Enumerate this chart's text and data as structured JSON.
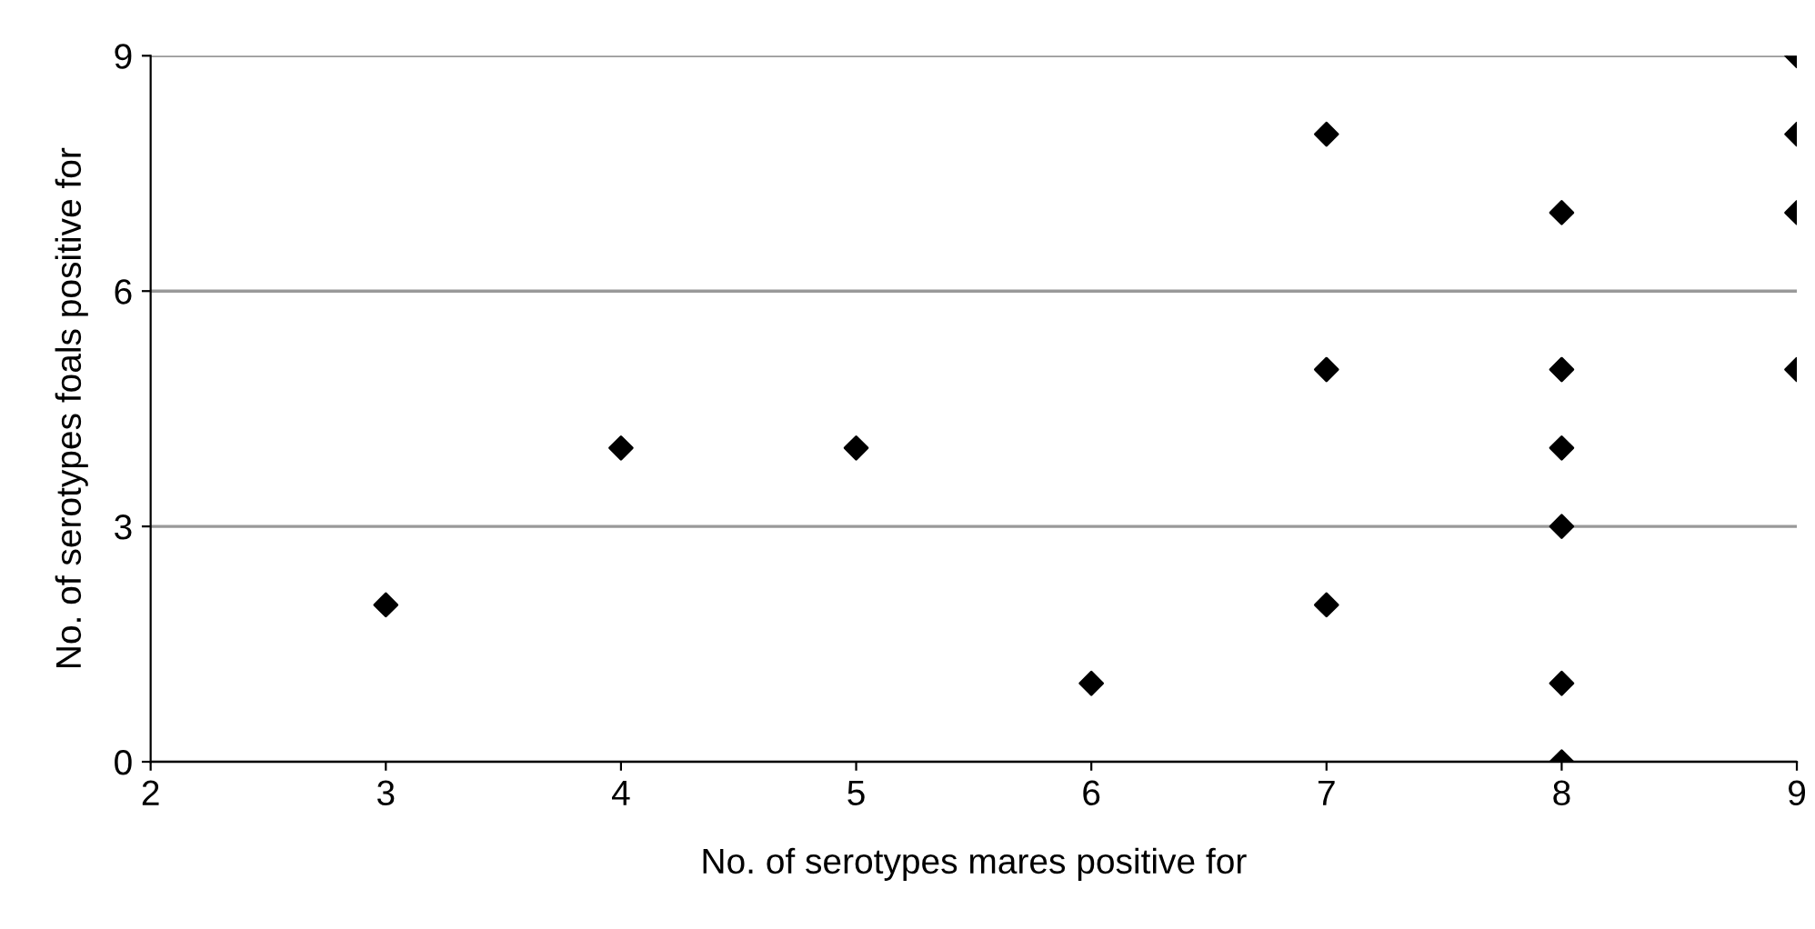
{
  "chart_data": {
    "type": "scatter",
    "xlabel": "No. of serotypes mares positive for",
    "ylabel": "No. of serotypes foals positive for",
    "x": [
      3,
      4,
      5,
      6,
      7,
      7,
      7,
      8,
      8,
      8,
      8,
      8,
      8,
      9,
      9,
      9,
      9
    ],
    "series": [
      {
        "color": "#000000",
        "values": [
          2,
          4,
          4,
          1,
          8,
          5,
          2,
          7,
          5,
          4,
          3,
          1,
          0,
          9,
          8,
          7,
          5
        ]
      }
    ],
    "xlim": [
      2,
      9
    ],
    "xticks": [
      2,
      3,
      4,
      5,
      6,
      7,
      8,
      9
    ],
    "ylim": [
      0,
      9
    ],
    "yticks": [
      0,
      3,
      6,
      9
    ],
    "grid": "y",
    "marker": "diamond",
    "legend": false
  }
}
